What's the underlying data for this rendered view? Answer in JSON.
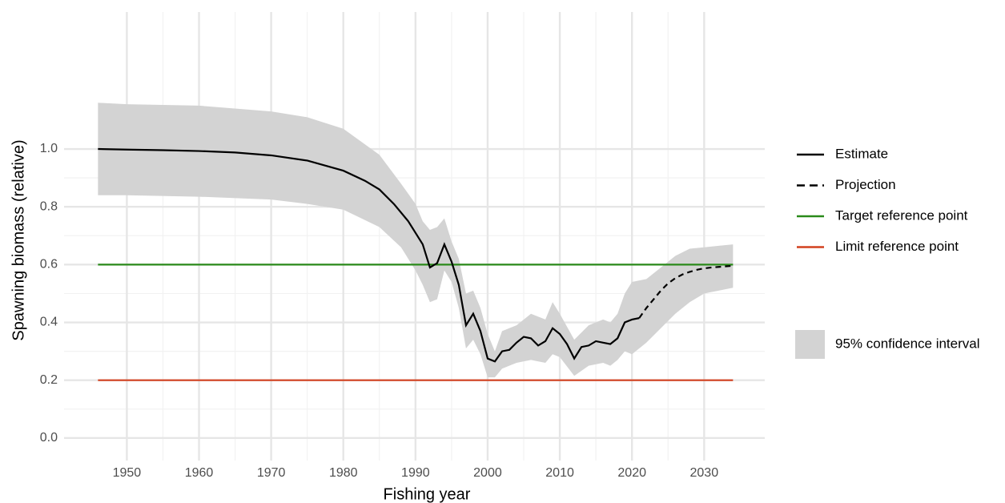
{
  "chart_data": {
    "type": "line",
    "x_label": "Fishing year",
    "y_label": "Spawning biomass (relative)",
    "xlim": [
      1941.3,
      2038.4
    ],
    "ylim": [
      -0.078,
      1.474
    ],
    "xticks": [
      1950,
      1960,
      1970,
      1980,
      1990,
      2000,
      2010,
      2020,
      2030
    ],
    "yticks": [
      {
        "value": 0,
        "label": "0.0"
      },
      0.2,
      0.4,
      0.6,
      0.8,
      {
        "value": 1,
        "label": "1.0"
      }
    ],
    "grid": true,
    "legend": "right",
    "band": {
      "name": "95% confidence interval",
      "color": "#d3d3d3",
      "x": [
        1946,
        1950,
        1960,
        1970,
        1975,
        1980,
        1985,
        1988,
        1990,
        1991,
        1992,
        1993,
        1994,
        1995,
        1996,
        1997,
        1998,
        1999,
        2000,
        2001,
        2002,
        2004,
        2006,
        2008,
        2009,
        2010,
        2012,
        2014,
        2016,
        2017,
        2018,
        2019,
        2020,
        2022,
        2024,
        2026,
        2028,
        2030,
        2032,
        2034
      ],
      "upper": [
        1.16,
        1.155,
        1.15,
        1.13,
        1.11,
        1.07,
        0.98,
        0.88,
        0.81,
        0.75,
        0.72,
        0.73,
        0.76,
        0.68,
        0.62,
        0.5,
        0.51,
        0.45,
        0.36,
        0.3,
        0.37,
        0.39,
        0.43,
        0.41,
        0.47,
        0.43,
        0.34,
        0.39,
        0.41,
        0.4,
        0.43,
        0.5,
        0.54,
        0.55,
        0.59,
        0.63,
        0.655,
        0.66,
        0.665,
        0.67
      ],
      "lower": [
        0.84,
        0.84,
        0.835,
        0.825,
        0.81,
        0.79,
        0.73,
        0.66,
        0.58,
        0.53,
        0.47,
        0.48,
        0.58,
        0.54,
        0.45,
        0.31,
        0.34,
        0.29,
        0.21,
        0.21,
        0.24,
        0.26,
        0.27,
        0.26,
        0.29,
        0.28,
        0.215,
        0.25,
        0.26,
        0.25,
        0.27,
        0.3,
        0.29,
        0.33,
        0.38,
        0.43,
        0.47,
        0.5,
        0.51,
        0.52
      ]
    },
    "series": [
      {
        "name": "Estimate",
        "color": "#000000",
        "dash": false,
        "x": [
          1946,
          1950,
          1955,
          1960,
          1965,
          1970,
          1975,
          1980,
          1983,
          1985,
          1987,
          1989,
          1991,
          1992,
          1993,
          1994,
          1995,
          1996,
          1997,
          1998,
          1999,
          2000,
          2001,
          2002,
          2003,
          2004,
          2005,
          2006,
          2007,
          2008,
          2009,
          2010,
          2011,
          2012,
          2013,
          2014,
          2015,
          2016,
          2017,
          2018,
          2019,
          2020,
          2021
        ],
        "values": [
          1.0,
          0.998,
          0.996,
          0.993,
          0.988,
          0.978,
          0.96,
          0.925,
          0.89,
          0.86,
          0.81,
          0.75,
          0.67,
          0.59,
          0.605,
          0.67,
          0.61,
          0.53,
          0.39,
          0.43,
          0.37,
          0.275,
          0.265,
          0.3,
          0.305,
          0.33,
          0.35,
          0.345,
          0.32,
          0.335,
          0.38,
          0.36,
          0.325,
          0.275,
          0.315,
          0.32,
          0.335,
          0.33,
          0.325,
          0.345,
          0.4,
          0.41,
          0.415
        ]
      },
      {
        "name": "Projection",
        "color": "#000000",
        "dash": true,
        "x": [
          2021,
          2022,
          2023,
          2024,
          2025,
          2026,
          2027,
          2028,
          2029,
          2030,
          2031,
          2032,
          2033,
          2034
        ],
        "values": [
          0.415,
          0.45,
          0.48,
          0.51,
          0.535,
          0.553,
          0.566,
          0.575,
          0.582,
          0.587,
          0.59,
          0.592,
          0.594,
          0.596
        ]
      },
      {
        "name": "Target reference point",
        "color": "#2a8a1a",
        "dash": false,
        "x": [
          1946,
          2034
        ],
        "values": [
          0.6,
          0.6
        ]
      },
      {
        "name": "Limit reference point",
        "color": "#d2401f",
        "dash": false,
        "x": [
          1946,
          2034
        ],
        "values": [
          0.2,
          0.2
        ]
      }
    ]
  }
}
